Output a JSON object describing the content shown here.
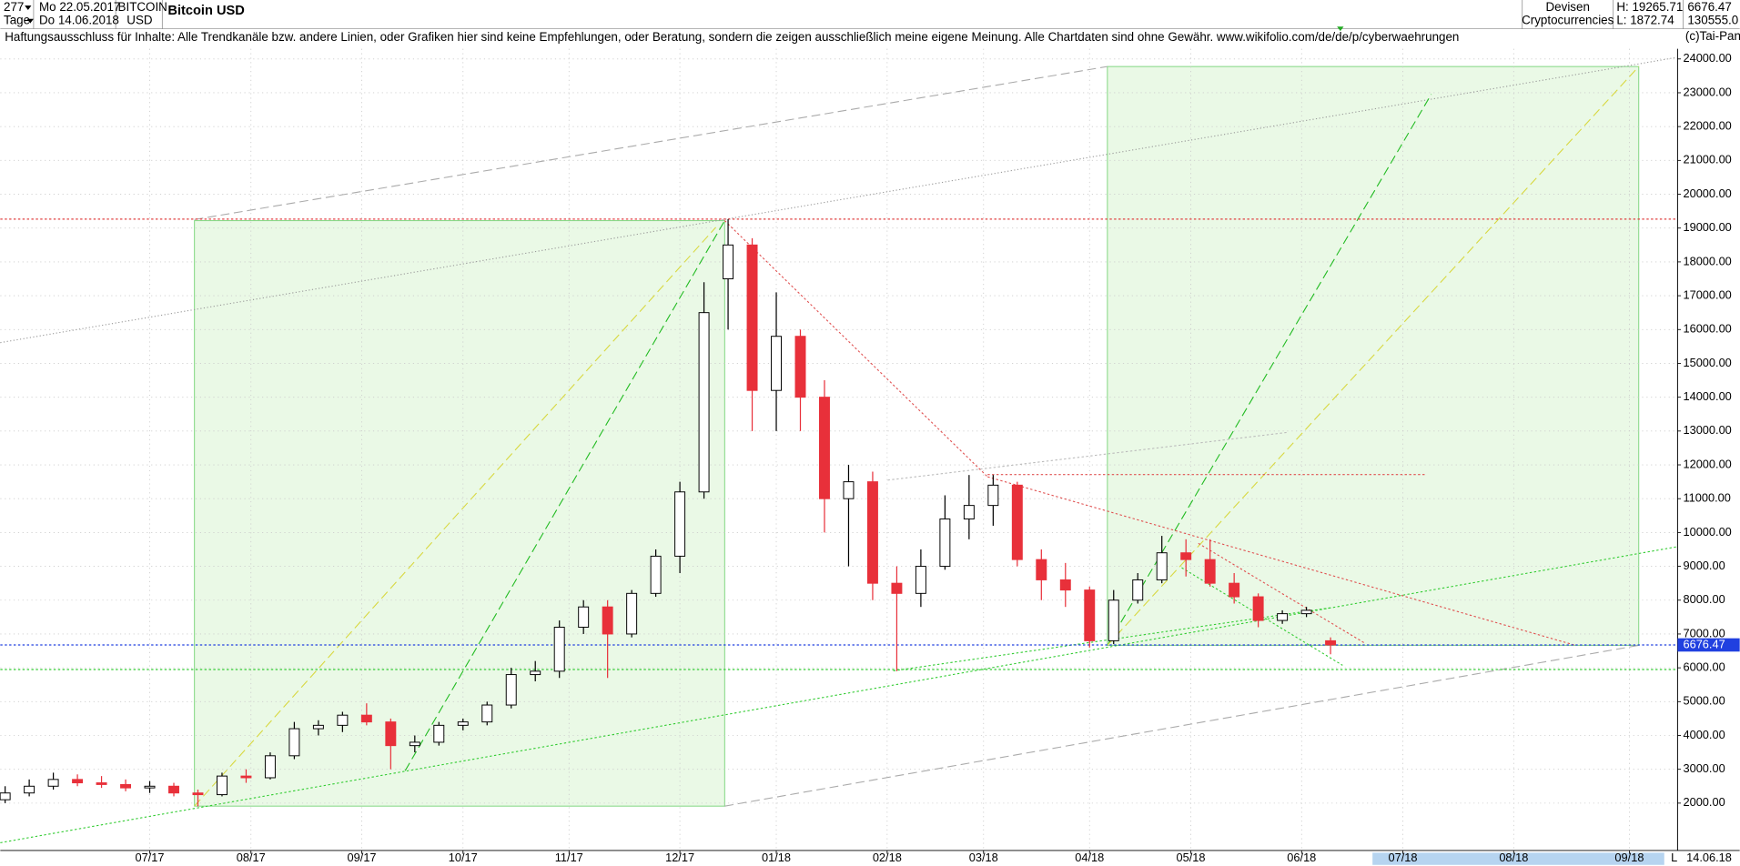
{
  "header": {
    "bars": "277",
    "start": "Mo 22.05.2017",
    "period": "Tage",
    "end": "Do 14.06.2018",
    "symbol": "BITCOIN",
    "currency": "USD",
    "title": "Bitcoin USD",
    "category": "Devisen",
    "group": "Cryptocurrencies",
    "high": "H: 19265.71",
    "low": "L: 1872.74",
    "last": "6676.47",
    "volume": "130555.0",
    "disclaimer": "Haftungsausschluss für Inhalte: Alle Trendkanäle bzw. andere Linien, oder Grafiken hier sind keine Empfehlungen, oder Beratung, sondern die zeigen ausschließlich meine eigene Meinung. Alle Chartdaten sind ohne Gewähr.  www.wikifolio.com/de/de/p/cyberwaehrungen",
    "copyright": "(c)Tai-Pan"
  },
  "footer": {
    "date": "14.06.18",
    "mode": "L"
  },
  "chart_data": {
    "type": "candlestick",
    "candles": {
      "color_up": "#ffffff",
      "color_down": "#e8303a",
      "x": [
        0,
        5,
        10,
        15,
        20,
        25,
        30,
        35,
        40,
        45,
        50,
        55,
        60,
        65,
        70,
        75,
        80,
        85,
        90,
        95,
        100,
        105,
        110,
        115,
        120,
        125,
        130,
        135,
        140,
        145,
        150,
        155,
        160,
        165,
        170,
        175,
        180,
        185,
        190,
        195,
        200,
        205,
        210,
        215,
        220,
        225,
        230,
        235,
        240,
        245,
        250,
        255,
        260,
        265,
        270,
        275
      ],
      "open": [
        2100,
        2300,
        2500,
        2700,
        2600,
        2550,
        2450,
        2500,
        2300,
        2250,
        2800,
        2750,
        3400,
        4200,
        4300,
        4600,
        4400,
        3700,
        3800,
        4300,
        4400,
        4900,
        5800,
        5900,
        7200,
        7800,
        7000,
        8200,
        9300,
        11200,
        17500,
        18500,
        14200,
        15800,
        14000,
        11000,
        11500,
        8500,
        8200,
        9000,
        10400,
        10800,
        11400,
        9200,
        8600,
        8300,
        6800,
        8000,
        8600,
        9400,
        9200,
        8500,
        8100,
        7400,
        7600,
        6800
      ],
      "high": [
        2500,
        2700,
        2900,
        2850,
        2800,
        2700,
        2650,
        2600,
        2400,
        2900,
        3000,
        3500,
        4400,
        4450,
        4700,
        4950,
        4500,
        4000,
        4400,
        4500,
        5000,
        6000,
        6200,
        7400,
        8000,
        8000,
        8300,
        9500,
        11500,
        17400,
        19265,
        18700,
        17100,
        16000,
        14500,
        12000,
        11800,
        9000,
        9500,
        11100,
        11700,
        11700,
        11500,
        9500,
        9100,
        8400,
        8300,
        8800,
        9900,
        9800,
        9800,
        8800,
        8200,
        7700,
        7800,
        6900
      ],
      "low": [
        2000,
        2200,
        2400,
        2500,
        2450,
        2350,
        2300,
        2200,
        1900,
        2200,
        2600,
        2700,
        3300,
        4000,
        4100,
        4300,
        3000,
        3500,
        3700,
        4150,
        4300,
        4800,
        5600,
        5700,
        7000,
        5700,
        6900,
        8100,
        8800,
        11000,
        16000,
        13000,
        13000,
        13000,
        10000,
        9000,
        8000,
        5900,
        7800,
        8900,
        9800,
        10200,
        9000,
        8000,
        7800,
        6600,
        6700,
        7900,
        8500,
        8700,
        8400,
        7900,
        7200,
        7300,
        7500,
        6400
      ],
      "close": [
        2300,
        2500,
        2700,
        2600,
        2550,
        2450,
        2500,
        2300,
        2250,
        2800,
        2750,
        3400,
        4200,
        4300,
        4600,
        4400,
        3700,
        3800,
        4300,
        4400,
        4900,
        5800,
        5900,
        7200,
        7800,
        7000,
        8200,
        9300,
        11200,
        16500,
        18500,
        14200,
        15800,
        14000,
        11000,
        11500,
        8500,
        8200,
        9000,
        10400,
        10800,
        11400,
        9200,
        8600,
        8300,
        6800,
        8000,
        8600,
        9400,
        9200,
        8500,
        8100,
        7400,
        7600,
        7700,
        6676.47
      ]
    },
    "hlines": [
      {
        "value": 19265.71,
        "color": "#e04040"
      },
      {
        "value": 5950,
        "color": "#33cc33"
      },
      {
        "value": 6676.47,
        "color": "#2040e0"
      }
    ],
    "xlim": [
      -1,
      347
    ],
    "xticks": [
      {
        "value": 30,
        "label": "07/17"
      },
      {
        "value": 51,
        "label": "08/17"
      },
      {
        "value": 74,
        "label": "09/17"
      },
      {
        "value": 95,
        "label": "10/17"
      },
      {
        "value": 117,
        "label": "11/17"
      },
      {
        "value": 140,
        "label": "12/17"
      },
      {
        "value": 160,
        "label": "01/18"
      },
      {
        "value": 183,
        "label": "02/18"
      },
      {
        "value": 203,
        "label": "03/18"
      },
      {
        "value": 225,
        "label": "04/18"
      },
      {
        "value": 246,
        "label": "05/18"
      },
      {
        "value": 269,
        "label": "06/18"
      },
      {
        "value": 290,
        "label": "07/18"
      },
      {
        "value": 313,
        "label": "08/18"
      },
      {
        "value": 337,
        "label": "09/18"
      }
    ],
    "ylim": [
      600,
      24300
    ],
    "yticks": [
      {
        "value": 2000,
        "label": "2000.00"
      },
      {
        "value": 3000,
        "label": "3000.00"
      },
      {
        "value": 4000,
        "label": "4000.00"
      },
      {
        "value": 5000,
        "label": "5000.00"
      },
      {
        "value": 6000,
        "label": "6000.00"
      },
      {
        "value": 7000,
        "label": "7000.00"
      },
      {
        "value": 8000,
        "label": "8000.00"
      },
      {
        "value": 9000,
        "label": "9000.00"
      },
      {
        "value": 10000,
        "label": "10000.00"
      },
      {
        "value": 11000,
        "label": "11000.00"
      },
      {
        "value": 12000,
        "label": "12000.00"
      },
      {
        "value": 13000,
        "label": "13000.00"
      },
      {
        "value": 14000,
        "label": "14000.00"
      },
      {
        "value": 15000,
        "label": "15000.00"
      },
      {
        "value": 16000,
        "label": "16000.00"
      },
      {
        "value": 17000,
        "label": "17000.00"
      },
      {
        "value": 18000,
        "label": "18000.00"
      },
      {
        "value": 19000,
        "label": "19000.00"
      },
      {
        "value": 20000,
        "label": "20000.00"
      },
      {
        "value": 21000,
        "label": "21000.00"
      },
      {
        "value": 22000,
        "label": "22000.00"
      },
      {
        "value": 23000,
        "label": "23000.00"
      },
      {
        "value": 24000,
        "label": "24000.00"
      }
    ],
    "grid": true
  }
}
